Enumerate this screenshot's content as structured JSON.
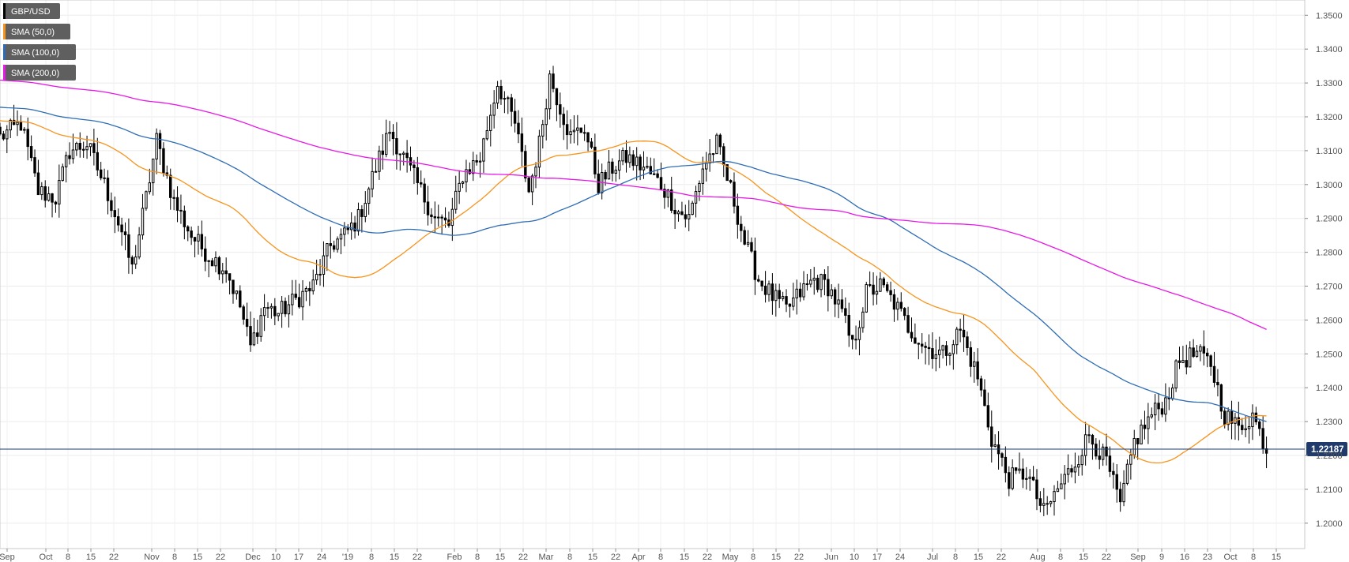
{
  "chart_data": {
    "type": "candlestick",
    "symbol": "GBP/USD",
    "current_price": "1.22187",
    "ylim": [
      1.1925,
      1.3545
    ],
    "y_ticks": [
      "1.3500",
      "1.3400",
      "1.3300",
      "1.3200",
      "1.3100",
      "1.3000",
      "1.2900",
      "1.2800",
      "1.2700",
      "1.2600",
      "1.2500",
      "1.2400",
      "1.2300",
      "1.2200",
      "1.2100",
      "1.2000"
    ],
    "x_labels": [
      "Sep",
      "Oct",
      "8",
      "15",
      "22",
      "Nov",
      "8",
      "15",
      "22",
      "Dec",
      "10",
      "17",
      "24",
      "'19",
      "8",
      "15",
      "22",
      "Feb",
      "8",
      "15",
      "22",
      "Mar",
      "8",
      "15",
      "22",
      "Apr",
      "8",
      "15",
      "22",
      "May",
      "8",
      "15",
      "22",
      "Jun",
      "10",
      "17",
      "24",
      "Jul",
      "8",
      "15",
      "22",
      "Aug",
      "8",
      "15",
      "22",
      "Sep",
      "9",
      "16",
      "23",
      "Oct",
      "8",
      "15"
    ],
    "grid": true,
    "legend_position": "top-left",
    "legend": [
      {
        "label": "GBP/USD",
        "color": "#000000"
      },
      {
        "label": "SMA (50,0)",
        "color": "#f7941d"
      },
      {
        "label": "SMA (100,0)",
        "color": "#2e6db5"
      },
      {
        "label": "SMA (200,0)",
        "color": "#e619e6"
      }
    ],
    "close_anchors": [
      [
        0,
        1.314
      ],
      [
        6,
        1.318
      ],
      [
        11,
        1.298
      ],
      [
        16,
        1.296
      ],
      [
        20,
        1.31
      ],
      [
        25,
        1.312
      ],
      [
        30,
        1.3
      ],
      [
        35,
        1.286
      ],
      [
        38,
        1.275
      ],
      [
        42,
        1.296
      ],
      [
        45,
        1.313
      ],
      [
        50,
        1.295
      ],
      [
        55,
        1.285
      ],
      [
        60,
        1.279
      ],
      [
        65,
        1.275
      ],
      [
        69,
        1.264
      ],
      [
        72,
        1.252
      ],
      [
        76,
        1.264
      ],
      [
        80,
        1.262
      ],
      [
        85,
        1.266
      ],
      [
        90,
        1.27
      ],
      [
        95,
        1.282
      ],
      [
        99,
        1.285
      ],
      [
        103,
        1.29
      ],
      [
        108,
        1.305
      ],
      [
        112,
        1.316
      ],
      [
        116,
        1.308
      ],
      [
        120,
        1.3
      ],
      [
        125,
        1.29
      ],
      [
        129,
        1.288
      ],
      [
        133,
        1.303
      ],
      [
        138,
        1.308
      ],
      [
        143,
        1.33
      ],
      [
        148,
        1.318
      ],
      [
        152,
        1.298
      ],
      [
        155,
        1.312
      ],
      [
        158,
        1.332
      ],
      [
        164,
        1.314
      ],
      [
        168,
        1.317
      ],
      [
        172,
        1.3
      ],
      [
        176,
        1.305
      ],
      [
        180,
        1.308
      ],
      [
        185,
        1.305
      ],
      [
        190,
        1.3
      ],
      [
        195,
        1.292
      ],
      [
        198,
        1.29
      ],
      [
        202,
        1.305
      ],
      [
        206,
        1.312
      ],
      [
        211,
        1.295
      ],
      [
        214,
        1.283
      ],
      [
        218,
        1.272
      ],
      [
        222,
        1.267
      ],
      [
        226,
        1.263
      ],
      [
        230,
        1.268
      ],
      [
        234,
        1.272
      ],
      [
        238,
        1.27
      ],
      [
        242,
        1.262
      ],
      [
        245,
        1.252
      ],
      [
        249,
        1.268
      ],
      [
        253,
        1.27
      ],
      [
        257,
        1.265
      ],
      [
        261,
        1.258
      ],
      [
        266,
        1.252
      ],
      [
        271,
        1.25
      ],
      [
        276,
        1.257
      ],
      [
        281,
        1.243
      ],
      [
        285,
        1.225
      ],
      [
        290,
        1.213
      ],
      [
        295,
        1.215
      ],
      [
        300,
        1.203
      ],
      [
        304,
        1.21
      ],
      [
        309,
        1.218
      ],
      [
        313,
        1.226
      ],
      [
        318,
        1.218
      ],
      [
        322,
        1.205
      ],
      [
        326,
        1.224
      ],
      [
        331,
        1.232
      ],
      [
        335,
        1.236
      ],
      [
        339,
        1.248
      ],
      [
        344,
        1.25
      ],
      [
        348,
        1.247
      ],
      [
        352,
        1.232
      ],
      [
        356,
        1.228
      ],
      [
        360,
        1.232
      ],
      [
        364,
        1.222
      ]
    ],
    "x_range": [
      0,
      375
    ]
  }
}
